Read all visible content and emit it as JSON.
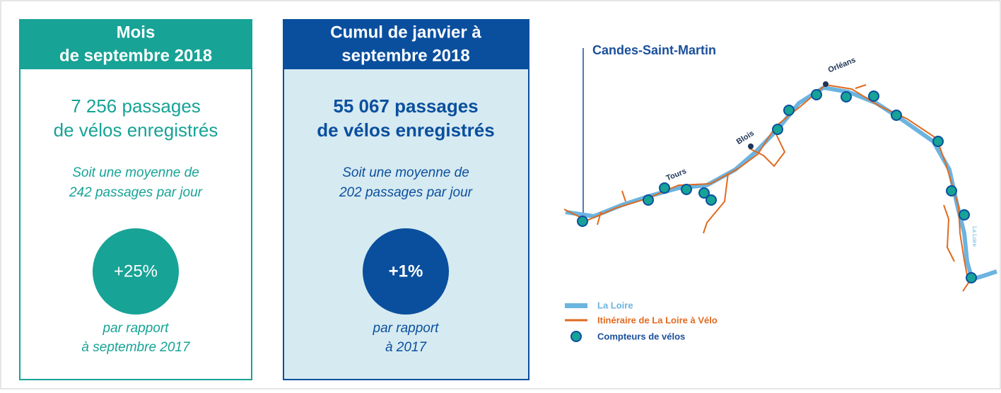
{
  "panels": [
    {
      "header": [
        "Mois",
        "de septembre 2018"
      ],
      "count": [
        "7 256 passages",
        "de vélos enregistrés"
      ],
      "average": [
        "Soit une moyenne de",
        "242 passages par jour"
      ],
      "change": "+25%",
      "comparison": [
        "par rapport",
        "à septembre 2017"
      ]
    },
    {
      "header": [
        "Cumul de janvier à",
        "septembre 2018"
      ],
      "count": [
        "55 067 passages",
        "de vélos enregistrés"
      ],
      "average": [
        "Soit une moyenne de",
        "202 passages par jour"
      ],
      "change": "+1%",
      "comparison": [
        "par rapport",
        "à 2017"
      ]
    }
  ],
  "map": {
    "start_label": "Candes-Saint-Martin",
    "cities": [
      "Orléans",
      "Blois",
      "Tours"
    ],
    "river_label": "La Loire",
    "legend": [
      "La Loire",
      "Itinéraire de La Loire à Vélo",
      "Compteurs de vélos"
    ]
  }
}
